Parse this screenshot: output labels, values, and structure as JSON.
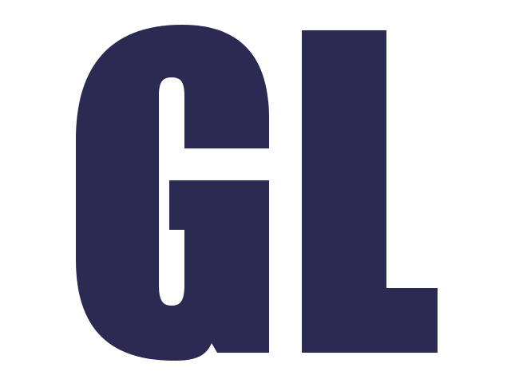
{
  "logo": {
    "lettering": "GL",
    "color": "#2b2a52",
    "background": "#ffffff"
  }
}
